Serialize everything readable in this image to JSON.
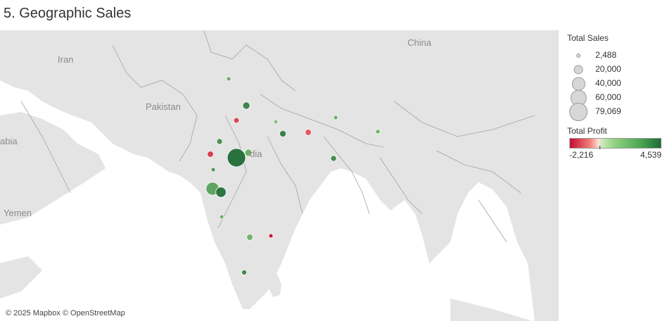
{
  "title": "5. Geographic Sales",
  "map": {
    "place_labels": {
      "iran": "Iran",
      "pakistan": "Pakistan",
      "china": "China",
      "arabia": "abia",
      "yemen": "Yemen",
      "india": "dia"
    },
    "attribution": "© 2025 Mapbox © OpenStreetMap",
    "colors": {
      "land": "#e4e4e4",
      "water": "#ffffff",
      "border": "#9c9c9c",
      "profit_low": "#c20f33",
      "profit_mid_low": "#f2807a",
      "profit_mid_high": "#8fd17e",
      "profit_high": "#1f6b35"
    }
  },
  "legend": {
    "size_title": "Total Sales",
    "size_items": [
      {
        "label": "2,488",
        "value": 2488
      },
      {
        "label": "20,000",
        "value": 20000
      },
      {
        "label": "40,000",
        "value": 40000
      },
      {
        "label": "60,000",
        "value": 60000
      },
      {
        "label": "79,069",
        "value": 79069
      }
    ],
    "color_title": "Total Profit",
    "color_min_label": "-2,216",
    "color_max_label": "4,539",
    "color_min": -2216,
    "color_max": 4539
  },
  "points": [
    {
      "sales": 2488,
      "profit": 1800
    },
    {
      "sales": 12000,
      "profit": 3600
    },
    {
      "sales": 7000,
      "profit": -1300
    },
    {
      "sales": 3500,
      "profit": 800
    },
    {
      "sales": 10000,
      "profit": 3800
    },
    {
      "sales": 9000,
      "profit": -900
    },
    {
      "sales": 3000,
      "profit": 1800
    },
    {
      "sales": 5000,
      "profit": 1200
    },
    {
      "sales": 8000,
      "profit": 3000
    },
    {
      "sales": 9000,
      "profit": -1400
    },
    {
      "sales": 79069,
      "profit": 4539
    },
    {
      "sales": 12000,
      "profit": 1700
    },
    {
      "sales": 3000,
      "profit": 2800
    },
    {
      "sales": 40000,
      "profit": 2200
    },
    {
      "sales": 25000,
      "profit": 4300
    },
    {
      "sales": 2800,
      "profit": 1500
    },
    {
      "sales": 3000,
      "profit": -2216
    },
    {
      "sales": 9000,
      "profit": 1500
    },
    {
      "sales": 8000,
      "profit": 3300
    },
    {
      "sales": 6000,
      "profit": 3400
    },
    {
      "sales": 5000,
      "profit": 1200
    }
  ]
}
